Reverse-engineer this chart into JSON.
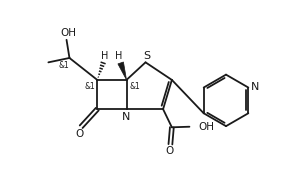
{
  "bg_color": "#ffffff",
  "line_color": "#1a1a1a",
  "line_width": 1.3,
  "figsize": [
    2.94,
    1.92
  ],
  "dpi": 100,
  "xlim": [
    0,
    10
  ],
  "ylim": [
    0,
    6.5
  ]
}
